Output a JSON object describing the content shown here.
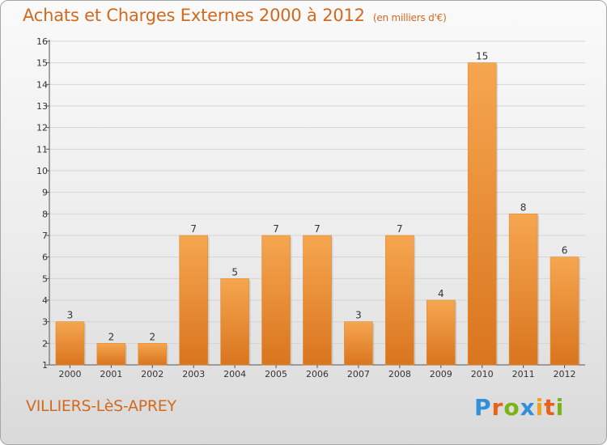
{
  "header": {
    "title": "Achats et Charges Externes 2000 à 2012",
    "unit": "(en milliers d'€)"
  },
  "footer": {
    "location": "VILLIERS-LèS-APREY",
    "logo": [
      "P",
      "r",
      "o",
      "x",
      "i",
      "t",
      "i"
    ]
  },
  "colors": {
    "title": "#d2691e",
    "bar_light": "#f6a650",
    "bar_dark": "#d9751e",
    "logo": [
      "#2f8fd8",
      "#e8611a",
      "#7ab317",
      "#2f8fd8",
      "#f0a020",
      "#e8611a",
      "#7ab317"
    ]
  },
  "chart_data": {
    "type": "bar",
    "title": "Achats et Charges Externes 2000 à 2012",
    "subtitle": "(en milliers d'€)",
    "categories": [
      "2000",
      "2001",
      "2002",
      "2003",
      "2004",
      "2005",
      "2006",
      "2007",
      "2008",
      "2009",
      "2010",
      "2011",
      "2012"
    ],
    "values": [
      3,
      2,
      2,
      7,
      5,
      7,
      7,
      3,
      7,
      4,
      15,
      8,
      6
    ],
    "ylim": [
      1,
      16
    ],
    "yticks": [
      1,
      2,
      3,
      4,
      5,
      6,
      7,
      8,
      9,
      10,
      11,
      12,
      13,
      14,
      15,
      16
    ],
    "grid": "horizontal",
    "data_labels": true
  }
}
